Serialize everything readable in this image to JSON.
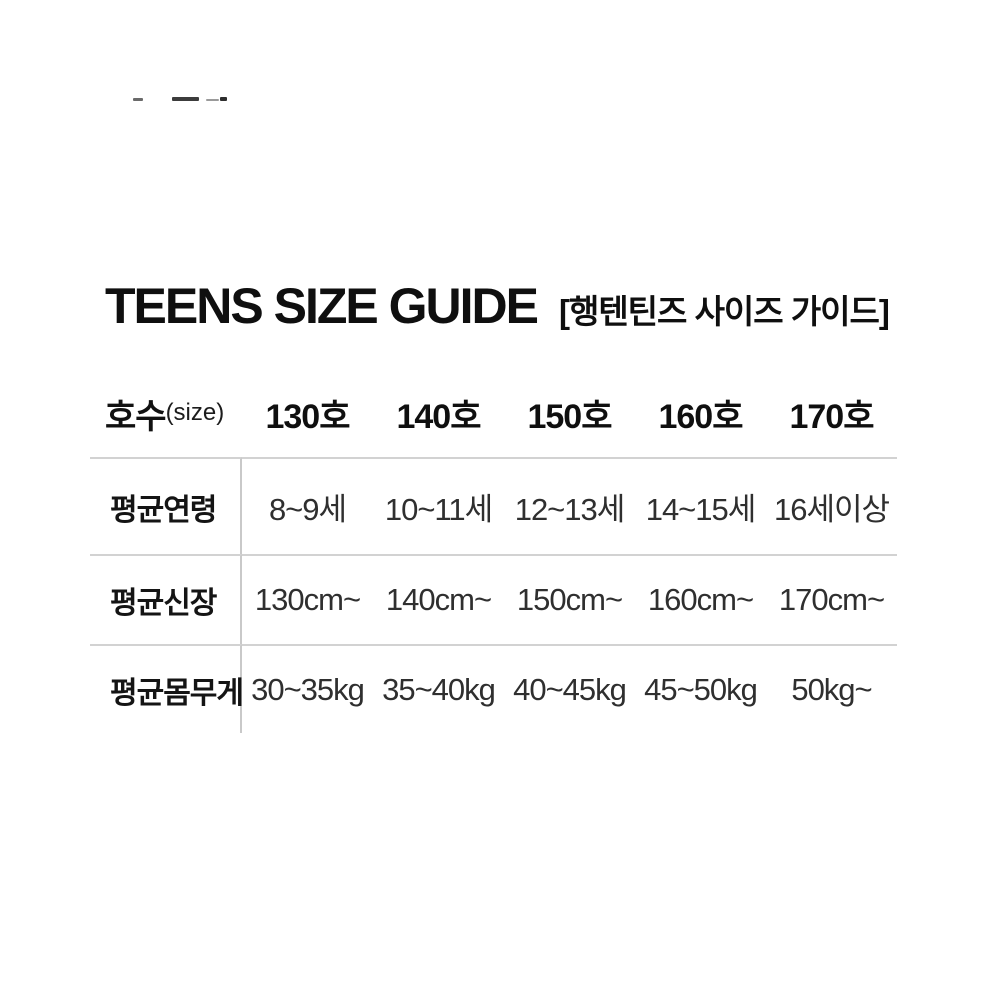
{
  "title": {
    "en": "TEENS SIZE GUIDE",
    "ko": "[행텐틴즈 사이즈 가이드]"
  },
  "table": {
    "corner": {
      "label": "호수",
      "sublabel": "(size)"
    },
    "columns": [
      "130호",
      "140호",
      "150호",
      "160호",
      "170호"
    ],
    "rows": [
      {
        "label": "평균연령",
        "values": [
          "8~9세",
          "10~11세",
          "12~13세",
          "14~15세",
          "16세이상"
        ]
      },
      {
        "label": "평균신장",
        "values": [
          "130cm~",
          "140cm~",
          "150cm~",
          "160cm~",
          "170cm~"
        ]
      },
      {
        "label": "평균몸무게",
        "values": [
          "30~35kg",
          "35~40kg",
          "40~45kg",
          "45~50kg",
          "50kg~"
        ]
      }
    ]
  },
  "colors": {
    "text_primary": "#0f0f0f",
    "text_data": "#2f2f2f",
    "line": "#d2d2d2"
  }
}
